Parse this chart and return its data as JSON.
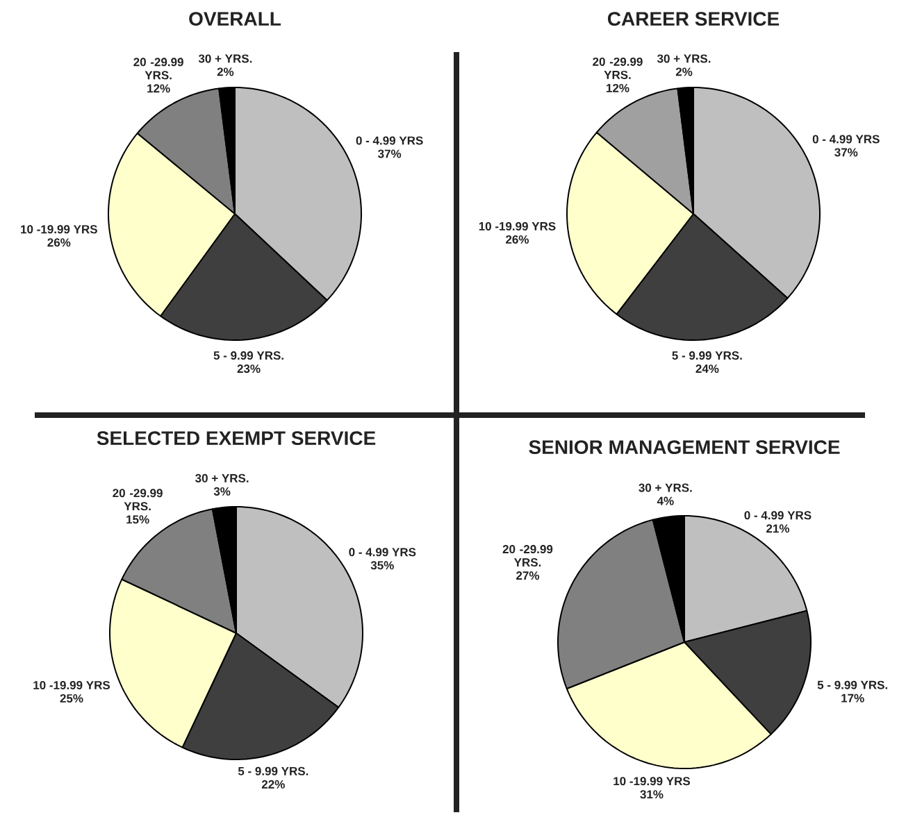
{
  "chart_data": [
    {
      "type": "pie",
      "title": "OVERALL",
      "categories": [
        "0 - 4.99 YRS",
        "5 - 9.99 YRS.",
        "10 -19.99 YRS",
        "20 -29.99 YRS.",
        "30 + YRS."
      ],
      "values": [
        37,
        23,
        26,
        12,
        2
      ],
      "value_labels": [
        "37%",
        "23%",
        "26%",
        "12%",
        "2%"
      ],
      "colors": [
        "#bfbfbf",
        "#3f3f3f",
        "#ffffcc",
        "#808080",
        "#000000"
      ]
    },
    {
      "type": "pie",
      "title": "CAREER SERVICE",
      "categories": [
        "0 - 4.99 YRS",
        "5 - 9.99 YRS.",
        "10 -19.99 YRS",
        "20 -29.99 YRS.",
        "30 + YRS."
      ],
      "values": [
        37,
        24,
        26,
        12,
        2
      ],
      "value_labels": [
        "37%",
        "24%",
        "26%",
        "12%",
        "2%"
      ],
      "colors": [
        "#bfbfbf",
        "#3f3f3f",
        "#ffffcc",
        "#a0a0a0",
        "#000000"
      ]
    },
    {
      "type": "pie",
      "title": "SELECTED EXEMPT SERVICE",
      "categories": [
        "0 - 4.99 YRS",
        "5 - 9.99 YRS.",
        "10 -19.99 YRS",
        "20 -29.99 YRS.",
        "30 + YRS."
      ],
      "values": [
        35,
        22,
        25,
        15,
        3
      ],
      "value_labels": [
        "35%",
        "22%",
        "25%",
        "15%",
        "3%"
      ],
      "colors": [
        "#bfbfbf",
        "#3f3f3f",
        "#ffffcc",
        "#808080",
        "#000000"
      ]
    },
    {
      "type": "pie",
      "title": "SENIOR MANAGEMENT SERVICE",
      "categories": [
        "0 - 4.99 YRS",
        "5 - 9.99 YRS.",
        "10 -19.99 YRS",
        "20 -29.99 YRS.",
        "30 + YRS."
      ],
      "values": [
        21,
        17,
        31,
        27,
        4
      ],
      "value_labels": [
        "21%",
        "17%",
        "31%",
        "27%",
        "4%"
      ],
      "colors": [
        "#bfbfbf",
        "#3f3f3f",
        "#ffffcc",
        "#808080",
        "#000000"
      ]
    }
  ]
}
